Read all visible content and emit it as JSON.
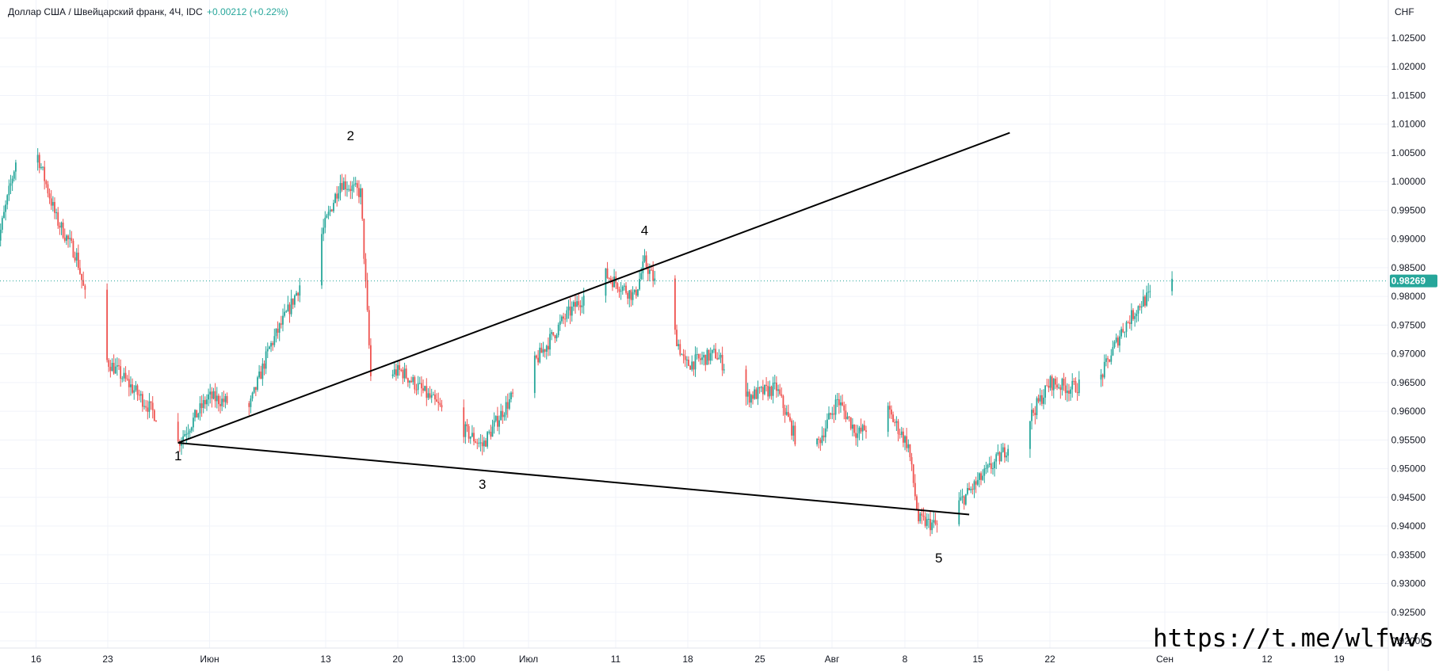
{
  "header": {
    "symbol_title": "Доллар США / Швейцарский франк, 4Ч, IDC",
    "change": "+0.00212 (+0.22%)"
  },
  "price_axis": {
    "currency": "CHF",
    "ticks": [
      "1.02500",
      "1.02000",
      "1.01500",
      "1.01000",
      "1.00500",
      "1.00000",
      "0.99500",
      "0.99000",
      "0.98500",
      "0.98000",
      "0.97500",
      "0.97000",
      "0.96500",
      "0.96000",
      "0.95500",
      "0.95000",
      "0.94500",
      "0.94000",
      "0.93500",
      "0.93000",
      "0.92500",
      "0.92000"
    ]
  },
  "time_axis": {
    "ticks": [
      "16",
      "23",
      "Июн",
      "13",
      "20",
      "13:00",
      "Июл",
      "11",
      "18",
      "25",
      "Авг",
      "8",
      "15",
      "22",
      "Сен",
      "12",
      "19"
    ]
  },
  "last_price": {
    "label": "0.98269",
    "value": 0.98269,
    "color": "#26a69a"
  },
  "watermark": "https://t.me/wlfwvs",
  "colors": {
    "up": "#26a69a",
    "down": "#ef5350",
    "drawing": "#000000",
    "grid": "#f0f3fa"
  },
  "chart_data": {
    "type": "candlestick",
    "title": "Доллар США / Швейцарский франк, 4Ч, IDC",
    "ylabel": "CHF",
    "ylim": [
      0.9185,
      1.0295
    ],
    "x_ticks": [
      "16",
      "23",
      "Июн",
      "13",
      "20",
      "13:00",
      "Июл",
      "11",
      "18",
      "25",
      "Авг",
      "8",
      "15",
      "22",
      "Сен",
      "12",
      "19"
    ],
    "y_ticks": [
      1.025,
      1.02,
      1.015,
      1.01,
      1.005,
      1.0,
      0.995,
      0.99,
      0.985,
      0.98,
      0.975,
      0.97,
      0.965,
      0.96,
      0.955,
      0.95,
      0.945,
      0.94,
      0.935,
      0.93,
      0.925,
      0.92
    ],
    "price_path": [
      {
        "date": "05-12",
        "close": 0.9875
      },
      {
        "date": "05-14",
        "close": 1.0035
      },
      {
        "date": "05-16",
        "close": 1.0055
      },
      {
        "date": "05-18",
        "close": 0.9935
      },
      {
        "date": "05-20",
        "close": 0.987
      },
      {
        "date": "05-22",
        "close": 0.9705
      },
      {
        "date": "05-24",
        "close": 0.967
      },
      {
        "date": "05-27",
        "close": 0.961
      },
      {
        "date": "05-30",
        "close": 0.9545
      },
      {
        "date": "06-02",
        "close": 0.9625
      },
      {
        "date": "06-06",
        "close": 0.9605
      },
      {
        "date": "06-08",
        "close": 0.971
      },
      {
        "date": "06-10",
        "close": 0.978
      },
      {
        "date": "06-13",
        "close": 0.99
      },
      {
        "date": "06-15",
        "close": 1.0
      },
      {
        "date": "06-17",
        "close": 0.998
      },
      {
        "date": "06-18",
        "close": 0.966
      },
      {
        "date": "06-21",
        "close": 0.967
      },
      {
        "date": "06-24",
        "close": 0.962
      },
      {
        "date": "06-27",
        "close": 0.957
      },
      {
        "date": "06-29",
        "close": 0.954
      },
      {
        "date": "07-01",
        "close": 0.96
      },
      {
        "date": "07-04",
        "close": 0.968
      },
      {
        "date": "07-07",
        "close": 0.976
      },
      {
        "date": "07-11",
        "close": 0.984
      },
      {
        "date": "07-14",
        "close": 0.98
      },
      {
        "date": "07-15",
        "close": 0.986
      },
      {
        "date": "07-17",
        "close": 0.979
      },
      {
        "date": "07-19",
        "close": 0.968
      },
      {
        "date": "07-22",
        "close": 0.97
      },
      {
        "date": "07-25",
        "close": 0.9625
      },
      {
        "date": "07-28",
        "close": 0.964
      },
      {
        "date": "07-31",
        "close": 0.95
      },
      {
        "date": "08-03",
        "close": 0.962
      },
      {
        "date": "08-05",
        "close": 0.956
      },
      {
        "date": "08-08",
        "close": 0.96
      },
      {
        "date": "08-10",
        "close": 0.954
      },
      {
        "date": "08-11",
        "close": 0.941
      },
      {
        "date": "08-13",
        "close": 0.94
      },
      {
        "date": "08-15",
        "close": 0.944
      },
      {
        "date": "08-19",
        "close": 0.952
      },
      {
        "date": "08-22",
        "close": 0.959
      },
      {
        "date": "08-24",
        "close": 0.965
      },
      {
        "date": "08-26",
        "close": 0.964
      },
      {
        "date": "08-29",
        "close": 0.966
      },
      {
        "date": "08-31",
        "close": 0.974
      },
      {
        "date": "09-02",
        "close": 0.979
      },
      {
        "date": "09-05",
        "close": 0.9827
      }
    ],
    "trendlines": [
      {
        "from": {
          "date": "05-30",
          "price": 0.9545
        },
        "to": {
          "date": "08-16",
          "price": 0.942
        }
      },
      {
        "from": {
          "date": "05-30",
          "price": 0.9545
        },
        "to": {
          "date": "08-20",
          "price": 1.0085
        }
      }
    ],
    "annotations": [
      {
        "text": "1",
        "date": "05-30",
        "price": 0.9545
      },
      {
        "text": "2",
        "date": "06-16",
        "price": 1.005
      },
      {
        "text": "3",
        "date": "06-29",
        "price": 0.9495
      },
      {
        "text": "4",
        "date": "07-15",
        "price": 0.9885
      },
      {
        "text": "5",
        "date": "08-13",
        "price": 0.937
      }
    ],
    "last_price": 0.98269
  }
}
